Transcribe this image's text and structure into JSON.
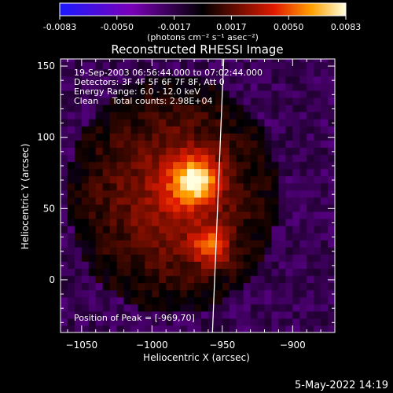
{
  "colorbar": {
    "ticks": [
      "-0.0083",
      "-0.0050",
      "-0.0017",
      "0.0017",
      "0.0050",
      "0.0083"
    ],
    "units": "(photons cm⁻² s⁻¹ asec⁻²)",
    "range": [
      -0.0083,
      0.0083
    ],
    "colors": {
      "low": "#1a1aff",
      "mid_low": "#7b00b8",
      "zero": "#000000",
      "mid_high": "#e11a00",
      "high_mid": "#ffa000",
      "high": "#ffffe0"
    }
  },
  "info": {
    "time": "19-Sep-2003 06:56:44.000 to 07:02:44.000",
    "detectors": "Detectors: 3F 4F 5F 6F 7F 8F, Att 0",
    "energy": "Energy Range: 6.0 - 12.0 keV",
    "clean": "Clean     Total counts: 2.98E+04",
    "peak": "Position of Peak = [-969,70]"
  },
  "footer": {
    "date": "5-May-2022 14:19"
  },
  "chart_data": {
    "type": "heatmap",
    "title": "Reconstructed RHESSI Image",
    "xlabel": "Heliocentric X (arcsec)",
    "ylabel": "Heliocentric Y (arcsec)",
    "xlim": [
      -1065,
      -870
    ],
    "ylim": [
      -37,
      155
    ],
    "x_ticks": [
      {
        "value": -1050,
        "label": "−1050"
      },
      {
        "value": -1000,
        "label": "−1000"
      },
      {
        "value": -950,
        "label": "−950"
      },
      {
        "value": -900,
        "label": "−900"
      }
    ],
    "y_ticks": [
      {
        "value": 0,
        "label": "0"
      },
      {
        "value": 50,
        "label": "50"
      },
      {
        "value": 100,
        "label": "100"
      },
      {
        "value": 150,
        "label": "150"
      }
    ],
    "sources": [
      {
        "x": -969,
        "y": 70,
        "intensity": 0.0083
      },
      {
        "x": -958,
        "y": 24,
        "intensity": 0.0065
      }
    ],
    "limb_line": [
      [
        -949,
        155
      ],
      [
        -957,
        -37
      ]
    ]
  }
}
